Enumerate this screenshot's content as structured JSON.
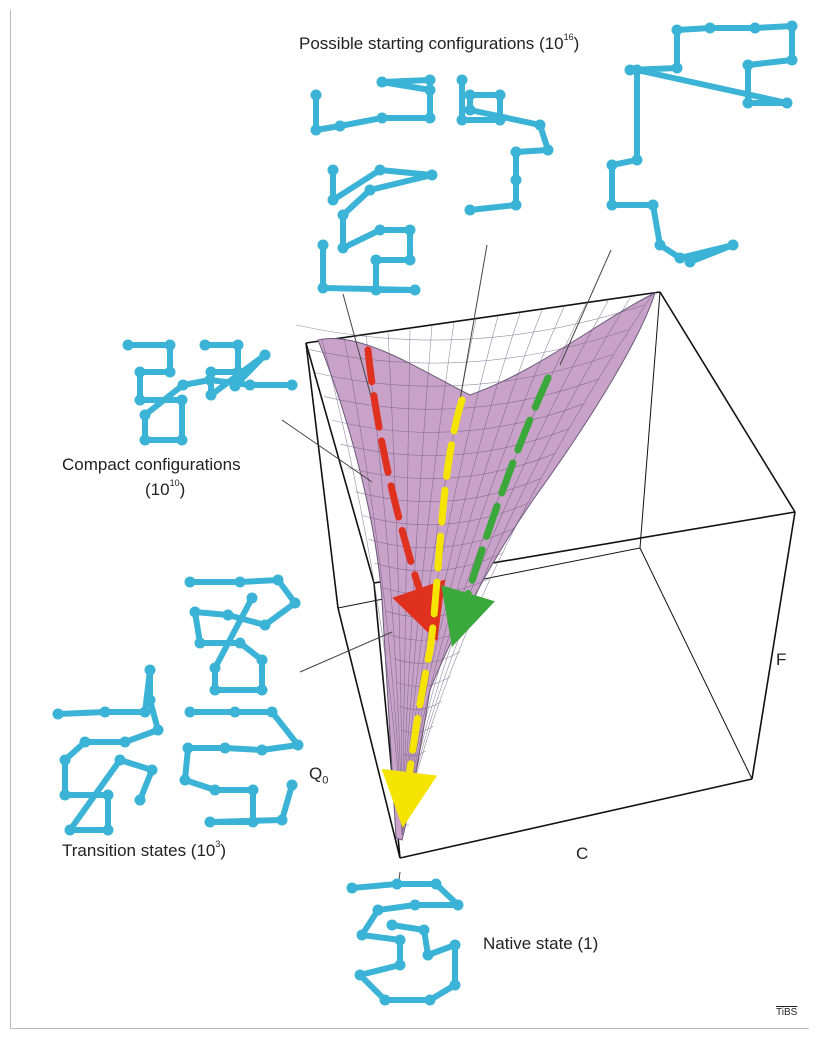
{
  "labels": {
    "possible_prefix": "Possible starting configurations (10",
    "possible_exp": "16",
    "compact_line1": "Compact configurations",
    "compact_prefix": "(10",
    "compact_exp": "10",
    "transition_prefix": "Transition states (10",
    "transition_exp": "3",
    "native": "Native state (1)",
    "close_paren": ")"
  },
  "axes": {
    "q0": "Q",
    "q0_sub": "0",
    "c": "C",
    "f": "F"
  },
  "watermark": "TiBS",
  "colors": {
    "lattice": "#3bb3d6",
    "surface": "#c8a2c8",
    "surface_line": "#6a5a7a",
    "arrow_red": "#e0301e",
    "arrow_yellow": "#f5e400",
    "arrow_green": "#3aa83a",
    "box": "#111111"
  }
}
